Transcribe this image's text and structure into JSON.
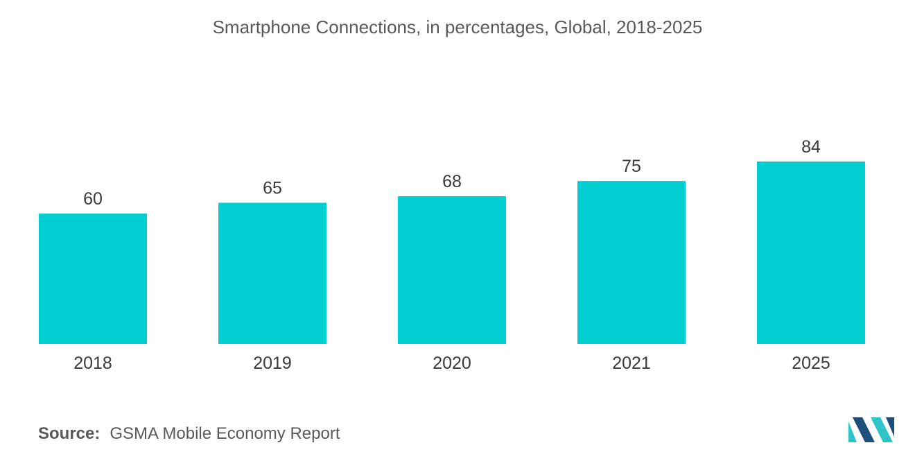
{
  "chart_data": {
    "type": "bar",
    "title": "Smartphone Connections, in percentages, Global, 2018-2025",
    "categories": [
      "2018",
      "2019",
      "2020",
      "2021",
      "2025"
    ],
    "values": [
      60,
      65,
      68,
      75,
      84
    ],
    "xlabel": "",
    "ylabel": "",
    "ylim": [
      0,
      84
    ],
    "grid": false,
    "legend": "none",
    "bar_color": "#00CED1"
  },
  "source": {
    "label": "Source:",
    "text": "GSMA Mobile Economy Report"
  },
  "logo": {
    "icon": "mordor-intelligence-logo-icon",
    "colors": [
      "#1E4F7A",
      "#2EC4C9"
    ]
  }
}
